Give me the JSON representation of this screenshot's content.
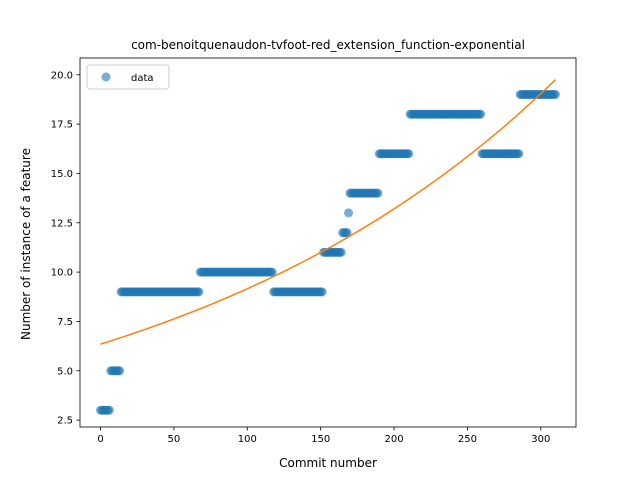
{
  "chart_data": {
    "type": "scatter",
    "title": "com-benoitquenaudon-tvfoot-red_extension_function-exponential",
    "xlabel": "Commit number",
    "ylabel": "Number of instance of a feature",
    "xlim": [
      -14,
      324
    ],
    "ylim": [
      2.15,
      20.85
    ],
    "xticks": [
      0,
      50,
      100,
      150,
      200,
      250,
      300
    ],
    "yticks": [
      2.5,
      5.0,
      7.5,
      10.0,
      12.5,
      15.0,
      17.5,
      20.0
    ],
    "ytick_labels": [
      "2.5",
      "5.0",
      "7.5",
      "10.0",
      "12.5",
      "15.0",
      "17.5",
      "20.0"
    ],
    "legend": {
      "position": "top-left",
      "entries": [
        "data"
      ]
    },
    "colors": {
      "data": "#1f77b4",
      "fit": "#ff7f0e"
    },
    "series": [
      {
        "name": "data",
        "segments": [
          {
            "x_start": 0,
            "x_end": 6,
            "y": 3
          },
          {
            "x_start": 7,
            "x_end": 13,
            "y": 5
          },
          {
            "x_start": 14,
            "x_end": 67,
            "y": 9
          },
          {
            "x_start": 68,
            "x_end": 117,
            "y": 10
          },
          {
            "x_start": 118,
            "x_end": 151,
            "y": 9
          },
          {
            "x_start": 152,
            "x_end": 164,
            "y": 11
          },
          {
            "x_start": 165,
            "x_end": 168,
            "y": 12
          },
          {
            "x_start": 169,
            "x_end": 169,
            "y": 13
          },
          {
            "x_start": 170,
            "x_end": 189,
            "y": 14
          },
          {
            "x_start": 190,
            "x_end": 210,
            "y": 16
          },
          {
            "x_start": 211,
            "x_end": 259,
            "y": 18
          },
          {
            "x_start": 260,
            "x_end": 285,
            "y": 16
          },
          {
            "x_start": 286,
            "x_end": 310,
            "y": 19
          }
        ]
      },
      {
        "fit_curve": {
          "x": [
            0,
            310
          ],
          "y": [
            6.35,
            19.75
          ],
          "model": "exponential"
        }
      }
    ]
  }
}
